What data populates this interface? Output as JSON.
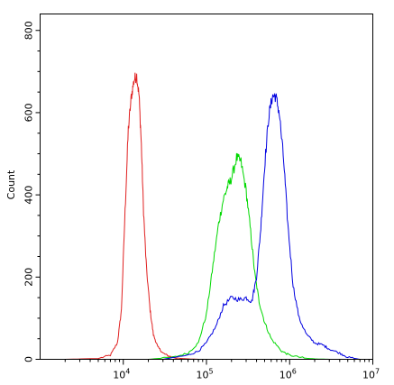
{
  "chart_data": {
    "type": "line",
    "title": "",
    "xlabel": "",
    "ylabel": "Count",
    "x_scale": "log",
    "xlim": [
      1000,
      10000000
    ],
    "ylim": [
      0,
      840
    ],
    "grid": false,
    "legend": "none",
    "x_ticks": [
      {
        "value": 10000,
        "base": "10",
        "exp": "4"
      },
      {
        "value": 100000,
        "base": "10",
        "exp": "5"
      },
      {
        "value": 1000000,
        "base": "10",
        "exp": "6"
      },
      {
        "value": 10000000,
        "base": "10",
        "exp": "7"
      }
    ],
    "y_ticks": [
      {
        "value": 0,
        "label": "0"
      },
      {
        "value": 200,
        "label": "200"
      },
      {
        "value": 400,
        "label": "400"
      },
      {
        "value": 600,
        "label": "600"
      },
      {
        "value": 800,
        "label": "800"
      }
    ],
    "series": [
      {
        "color": "#e02020",
        "x": [
          2000,
          5000,
          7000,
          8500,
          9500,
          10500,
          11500,
          12500,
          13500,
          14500,
          15500,
          16500,
          17500,
          19000,
          21000,
          23000,
          26000,
          30000,
          35000,
          42000,
          50000,
          60000,
          80000
        ],
        "y": [
          0,
          2,
          10,
          40,
          120,
          360,
          560,
          640,
          680,
          690,
          640,
          520,
          360,
          220,
          120,
          60,
          30,
          15,
          8,
          4,
          2,
          1,
          0
        ]
      },
      {
        "color": "#00d800",
        "x": [
          20000,
          40000,
          60000,
          80000,
          100000,
          120000,
          140000,
          160000,
          180000,
          200000,
          230000,
          260000,
          300000,
          340000,
          380000,
          430000,
          500000,
          600000,
          800000,
          1000000,
          1500000,
          2000000,
          3000000
        ],
        "y": [
          0,
          5,
          15,
          40,
          110,
          230,
          330,
          390,
          420,
          440,
          490,
          480,
          410,
          310,
          210,
          140,
          90,
          50,
          20,
          10,
          3,
          1,
          0
        ]
      },
      {
        "color": "#0000e0",
        "x": [
          30000,
          60000,
          80000,
          100000,
          130000,
          160000,
          200000,
          250000,
          300000,
          350000,
          400000,
          450000,
          500000,
          560000,
          620000,
          680000,
          750000,
          850000,
          950000,
          1100000,
          1300000,
          1600000,
          2000000,
          2500000,
          3000000,
          4000000,
          5000000,
          7000000
        ],
        "y": [
          0,
          10,
          20,
          40,
          80,
          130,
          150,
          145,
          150,
          140,
          200,
          320,
          470,
          590,
          640,
          640,
          600,
          480,
          330,
          180,
          100,
          60,
          40,
          35,
          25,
          15,
          5,
          0
        ]
      }
    ]
  }
}
